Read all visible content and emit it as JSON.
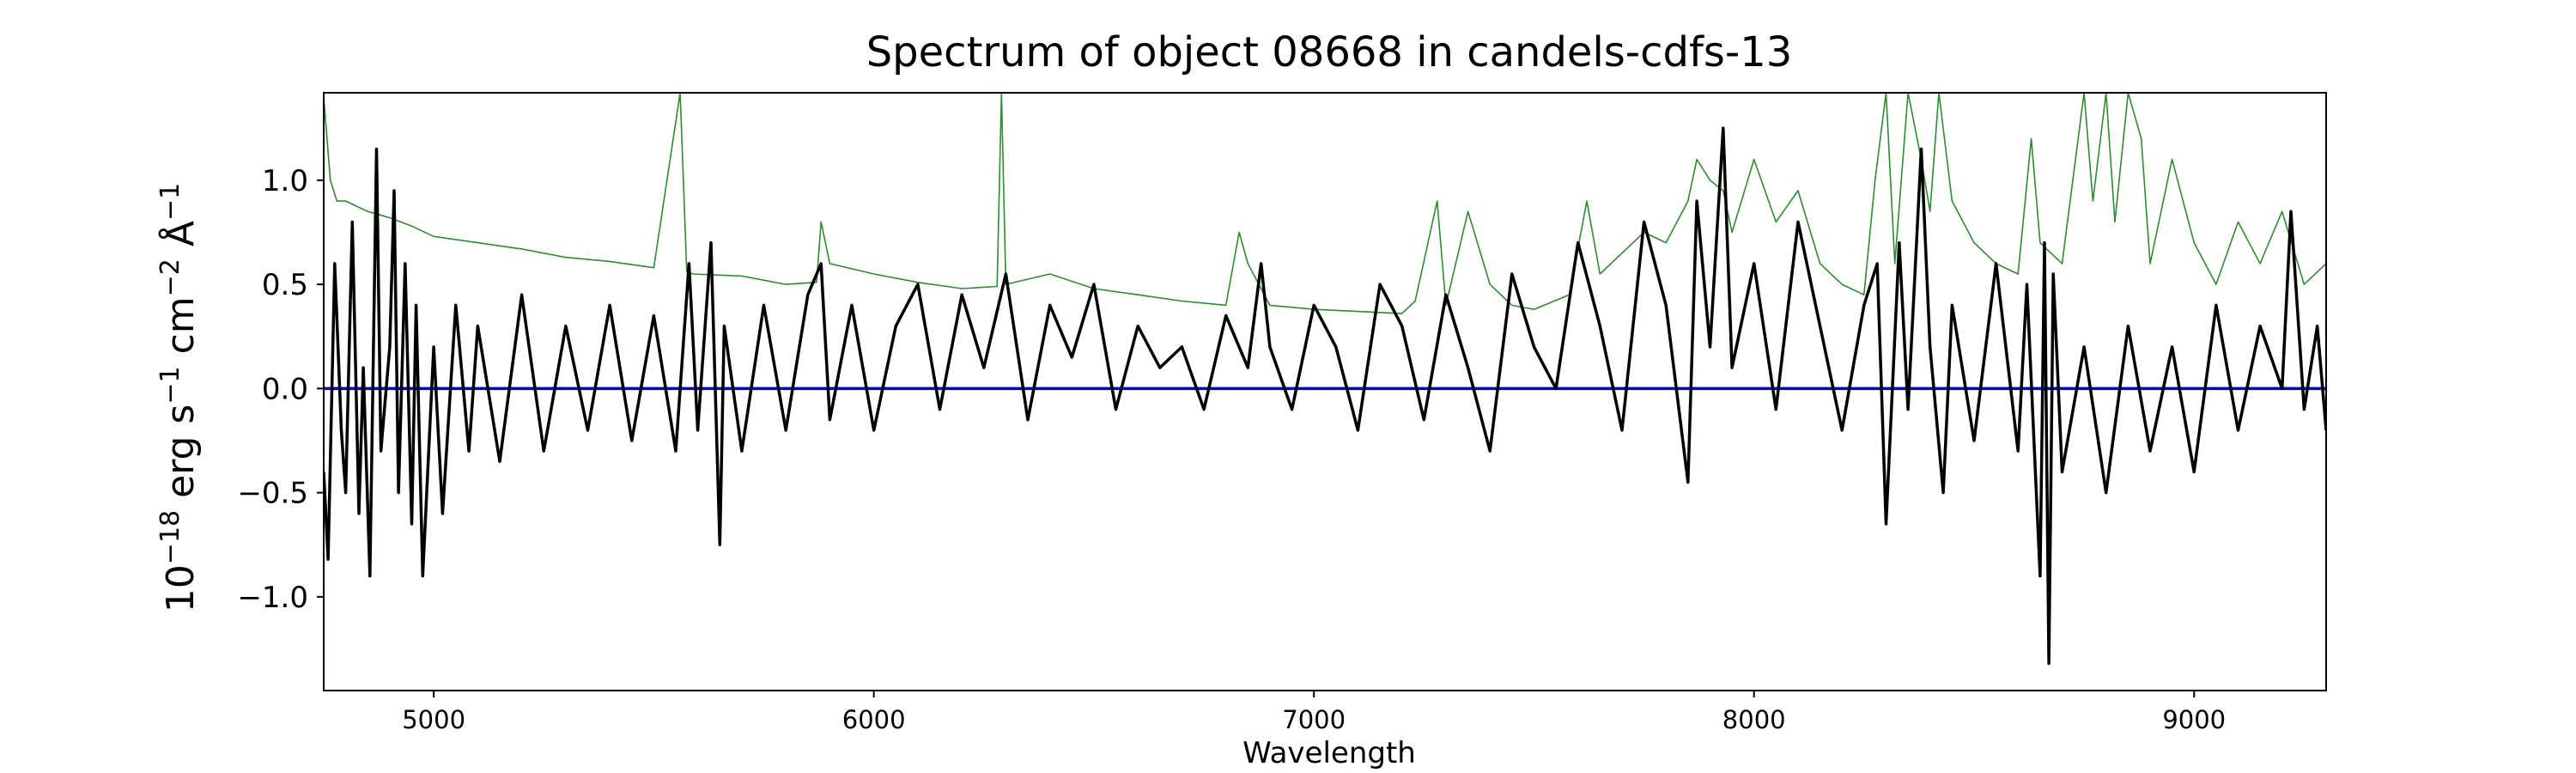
{
  "chart_data": {
    "type": "line",
    "title": "Spectrum of object 08668 in candels-cdfs-13",
    "xlabel": "Wavelength",
    "ylabel": "10−18 erg s−1 cm−2 Å−1",
    "xlim": [
      4750,
      9300
    ],
    "ylim": [
      -1.45,
      1.42
    ],
    "x_ticks": [
      5000,
      6000,
      7000,
      8000,
      9000
    ],
    "y_ticks": [
      -1.0,
      -0.5,
      0.0,
      0.5,
      1.0
    ],
    "x_tick_labels": [
      "5000",
      "6000",
      "7000",
      "8000",
      "9000"
    ],
    "y_tick_labels": [
      "−1.0",
      "−0.5",
      "0.0",
      "0.5",
      "1.0"
    ],
    "grid": false,
    "legend": "none",
    "series": [
      {
        "role": "error",
        "color": "#2e8b2e",
        "x": [
          4750,
          4765,
          4780,
          4800,
          4850,
          4900,
          4950,
          5000,
          5100,
          5200,
          5300,
          5400,
          5500,
          5560,
          5575,
          5590,
          5700,
          5800,
          5870,
          5880,
          5900,
          6000,
          6100,
          6200,
          6280,
          6290,
          6300,
          6400,
          6500,
          6600,
          6700,
          6800,
          6830,
          6850,
          6900,
          7000,
          7100,
          7200,
          7230,
          7280,
          7300,
          7350,
          7400,
          7450,
          7500,
          7580,
          7620,
          7650,
          7700,
          7750,
          7800,
          7850,
          7870,
          7900,
          7930,
          7950,
          8000,
          8050,
          8100,
          8150,
          8200,
          8250,
          8275,
          8300,
          8320,
          8350,
          8380,
          8400,
          8420,
          8450,
          8500,
          8550,
          8600,
          8630,
          8650,
          8700,
          8750,
          8770,
          8800,
          8820,
          8850,
          8880,
          8900,
          8950,
          9000,
          9050,
          9100,
          9150,
          9200,
          9250,
          9300
        ],
        "y": [
          1.4,
          1.0,
          0.9,
          0.9,
          0.85,
          0.82,
          0.78,
          0.73,
          0.7,
          0.67,
          0.63,
          0.61,
          0.58,
          1.42,
          0.56,
          0.55,
          0.54,
          0.5,
          0.51,
          0.8,
          0.6,
          0.55,
          0.51,
          0.48,
          0.49,
          1.42,
          0.5,
          0.55,
          0.48,
          0.45,
          0.42,
          0.4,
          0.75,
          0.6,
          0.4,
          0.38,
          0.37,
          0.36,
          0.42,
          0.9,
          0.4,
          0.85,
          0.5,
          0.4,
          0.38,
          0.45,
          0.9,
          0.55,
          0.65,
          0.75,
          0.7,
          0.9,
          1.1,
          1.0,
          0.95,
          0.75,
          1.1,
          0.8,
          0.95,
          0.6,
          0.5,
          0.45,
          1.0,
          1.42,
          0.6,
          1.42,
          1.1,
          0.85,
          1.42,
          0.9,
          0.7,
          0.6,
          0.55,
          1.2,
          0.7,
          0.6,
          1.42,
          0.9,
          1.42,
          0.8,
          1.42,
          1.2,
          0.6,
          1.1,
          0.7,
          0.5,
          0.8,
          0.6,
          0.85,
          0.5,
          0.6
        ]
      },
      {
        "role": "zero",
        "color": "#0000cc",
        "x": [
          4750,
          9300
        ],
        "y": [
          0.0,
          0.0
        ]
      },
      {
        "role": "flux",
        "color": "#000000",
        "x": [
          4750,
          4760,
          4775,
          4790,
          4800,
          4815,
          4830,
          4840,
          4855,
          4870,
          4880,
          4900,
          4910,
          4920,
          4935,
          4950,
          4960,
          4975,
          5000,
          5020,
          5050,
          5080,
          5100,
          5150,
          5200,
          5250,
          5300,
          5350,
          5400,
          5450,
          5500,
          5550,
          5580,
          5600,
          5630,
          5650,
          5660,
          5700,
          5750,
          5800,
          5850,
          5880,
          5900,
          5950,
          6000,
          6050,
          6100,
          6150,
          6200,
          6250,
          6300,
          6350,
          6400,
          6450,
          6500,
          6550,
          6600,
          6650,
          6700,
          6750,
          6800,
          6850,
          6880,
          6900,
          6950,
          7000,
          7050,
          7100,
          7150,
          7200,
          7250,
          7300,
          7350,
          7400,
          7450,
          7500,
          7550,
          7600,
          7650,
          7700,
          7750,
          7800,
          7850,
          7870,
          7900,
          7930,
          7950,
          8000,
          8050,
          8100,
          8150,
          8200,
          8250,
          8280,
          8300,
          8330,
          8350,
          8380,
          8400,
          8430,
          8450,
          8500,
          8550,
          8600,
          8620,
          8650,
          8660,
          8670,
          8680,
          8700,
          8750,
          8800,
          8850,
          8900,
          8950,
          9000,
          9050,
          9100,
          9150,
          9200,
          9220,
          9250,
          9280,
          9300
        ],
        "y": [
          -0.4,
          -0.82,
          0.6,
          -0.2,
          -0.5,
          0.8,
          -0.6,
          0.1,
          -0.9,
          1.15,
          -0.3,
          0.2,
          0.95,
          -0.5,
          0.6,
          -0.65,
          0.4,
          -0.9,
          0.2,
          -0.6,
          0.4,
          -0.3,
          0.3,
          -0.35,
          0.45,
          -0.3,
          0.3,
          -0.2,
          0.4,
          -0.25,
          0.35,
          -0.3,
          0.6,
          -0.2,
          0.7,
          -0.75,
          0.3,
          -0.3,
          0.4,
          -0.2,
          0.45,
          0.6,
          -0.15,
          0.4,
          -0.2,
          0.3,
          0.5,
          -0.1,
          0.45,
          0.1,
          0.55,
          -0.15,
          0.4,
          0.15,
          0.5,
          -0.1,
          0.3,
          0.1,
          0.2,
          -0.1,
          0.35,
          0.1,
          0.6,
          0.2,
          -0.1,
          0.4,
          0.2,
          -0.2,
          0.5,
          0.3,
          -0.15,
          0.45,
          0.1,
          -0.3,
          0.55,
          0.2,
          0.0,
          0.7,
          0.3,
          -0.2,
          0.8,
          0.4,
          -0.45,
          0.9,
          0.2,
          1.25,
          0.1,
          0.6,
          -0.1,
          0.8,
          0.3,
          -0.2,
          0.4,
          0.6,
          -0.65,
          0.7,
          -0.1,
          1.15,
          0.2,
          -0.5,
          0.4,
          -0.25,
          0.6,
          -0.3,
          0.5,
          -0.9,
          0.7,
          -1.32,
          0.55,
          -0.4,
          0.2,
          -0.5,
          0.3,
          -0.3,
          0.2,
          -0.4,
          0.4,
          -0.2,
          0.3,
          0.0,
          0.85,
          -0.1,
          0.3,
          -0.2
        ]
      }
    ]
  }
}
